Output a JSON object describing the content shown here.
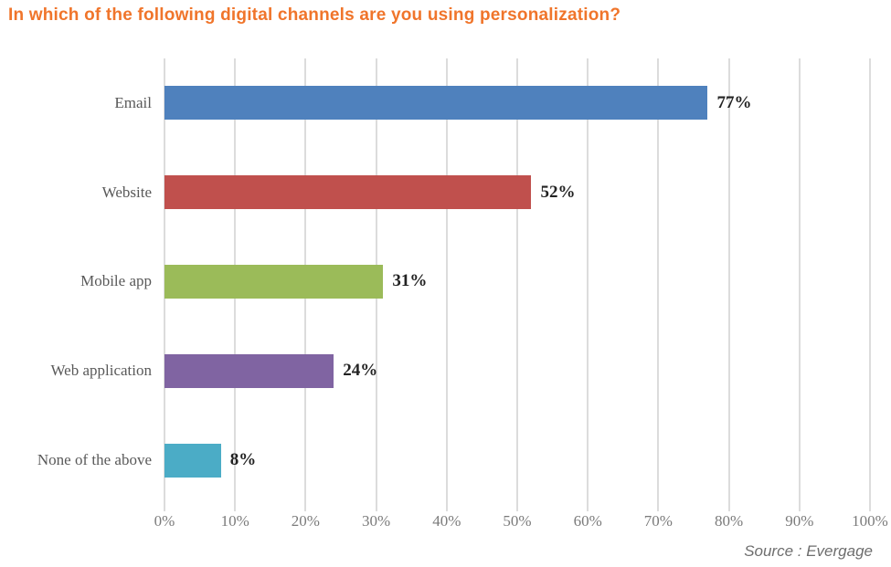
{
  "title": "In which of the following digital channels are you using personalization?",
  "source_note": "Source : Evergage",
  "colors": {
    "background": "#FFFFFF",
    "title_text": "#F0752B",
    "gridline": "#DCDCDC",
    "category_label": "#595959",
    "tick_label": "#7B7B7B",
    "value_label": "#222222",
    "source_text": "#6E6E6E"
  },
  "chart_data": {
    "type": "bar",
    "orientation": "horizontal",
    "title": "In which of the following digital channels are you using personalization?",
    "categories": [
      "Email",
      "Website",
      "Mobile app",
      "Web application",
      "None of the above"
    ],
    "values": [
      77,
      52,
      31,
      24,
      8
    ],
    "value_labels": [
      "77%",
      "52%",
      "31%",
      "24%",
      "8%"
    ],
    "bar_colors": [
      "#4F81BD",
      "#C0504D",
      "#9BBB59",
      "#8064A2",
      "#4BACC6"
    ],
    "xlabel": "",
    "ylabel": "",
    "xlim": [
      0,
      100
    ],
    "x_tick_interval": 10,
    "x_tick_labels": [
      "0%",
      "10%",
      "20%",
      "30%",
      "40%",
      "50%",
      "60%",
      "70%",
      "80%",
      "90%",
      "100%"
    ],
    "grid": "vertical-gridlines-only",
    "legend": "none",
    "data_labels": "outside-end",
    "source": "Source : Evergage"
  }
}
